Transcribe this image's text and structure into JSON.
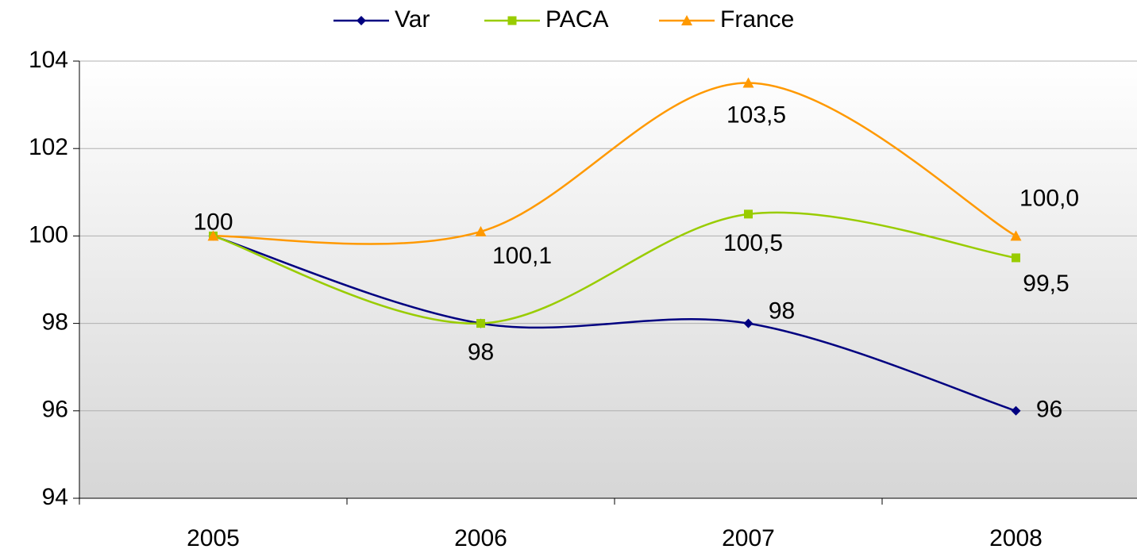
{
  "chart_data": {
    "type": "line",
    "categories": [
      "2005",
      "2006",
      "2007",
      "2008"
    ],
    "series": [
      {
        "name": "Var",
        "color": "#000080",
        "marker": "diamond",
        "values": [
          100,
          98,
          98,
          96
        ],
        "value_labels": [
          "100",
          "98",
          "98",
          "96"
        ]
      },
      {
        "name": "PACA",
        "color": "#99cc00",
        "marker": "square",
        "values": [
          100,
          98,
          100.5,
          99.5
        ],
        "value_labels": [
          null,
          null,
          "100,5",
          "99,5"
        ]
      },
      {
        "name": "France",
        "color": "#ff9900",
        "marker": "triangle",
        "values": [
          100,
          100.1,
          103.5,
          100.0
        ],
        "value_labels": [
          null,
          "100,1",
          "103,5",
          "100,0"
        ]
      }
    ],
    "ylim": [
      94,
      104
    ],
    "yticks": [
      94,
      96,
      98,
      100,
      102,
      104
    ],
    "grid": true,
    "smooth": true,
    "legend": "top"
  }
}
